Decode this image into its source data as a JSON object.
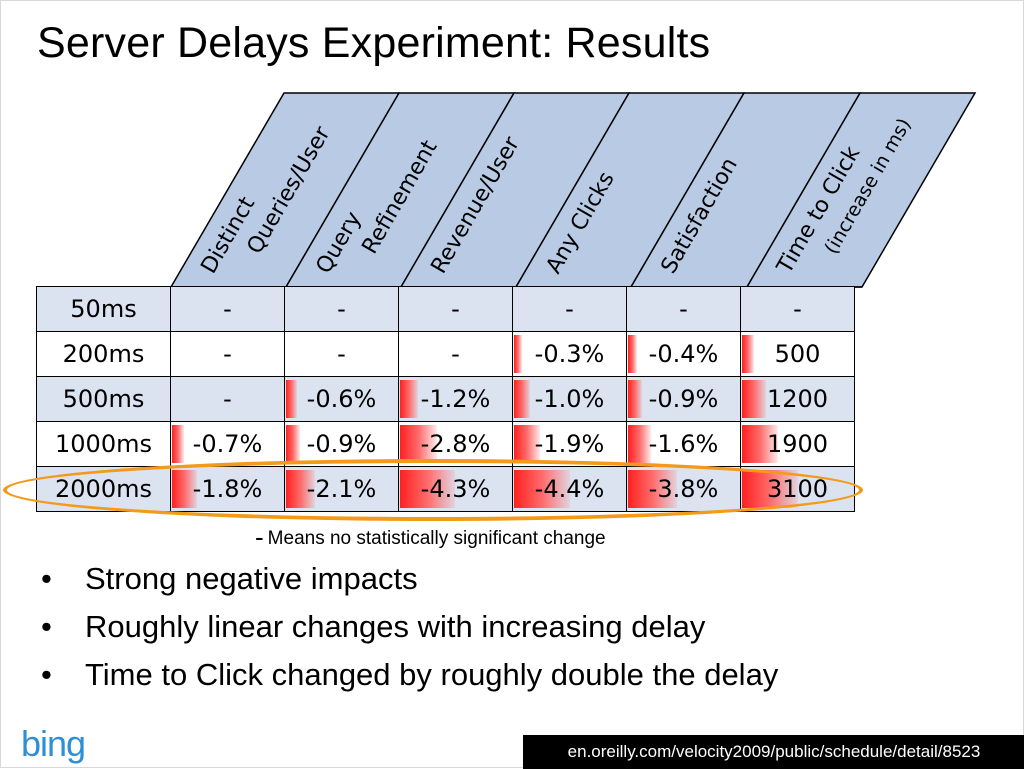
{
  "title": "Server Delays Experiment: Results",
  "columns": [
    {
      "line1": "Distinct",
      "line2": "Queries/User"
    },
    {
      "line1": "Query",
      "line2": "Refinement"
    },
    {
      "line1": "Revenue/User",
      "line2": ""
    },
    {
      "line1": "Any Clicks",
      "line2": ""
    },
    {
      "line1": "Satisfaction",
      "line2": ""
    },
    {
      "line1": "Time to Click",
      "line2": "(increase in ms)"
    }
  ],
  "rows": [
    {
      "label": "50ms",
      "cells": [
        "-",
        "-",
        "-",
        "-",
        "-",
        "-"
      ],
      "bars": [
        0,
        0,
        0,
        0,
        0,
        0
      ]
    },
    {
      "label": "200ms",
      "cells": [
        "-",
        "-",
        "-",
        "-0.3%",
        "-0.4%",
        "500"
      ],
      "bars": [
        0,
        0,
        0,
        0.07,
        0.09,
        0.16
      ]
    },
    {
      "label": "500ms",
      "cells": [
        "-",
        "-0.6%",
        "-1.2%",
        "-1.0%",
        "-0.9%",
        "1200"
      ],
      "bars": [
        0,
        0.14,
        0.27,
        0.23,
        0.2,
        0.39
      ]
    },
    {
      "label": "1000ms",
      "cells": [
        "-0.7%",
        "-0.9%",
        "-2.8%",
        "-1.9%",
        "-1.6%",
        "1900"
      ],
      "bars": [
        0.16,
        0.2,
        0.64,
        0.43,
        0.36,
        0.61
      ]
    },
    {
      "label": "2000ms",
      "cells": [
        "-1.8%",
        "-2.1%",
        "-4.3%",
        "-4.4%",
        "-3.8%",
        "3100"
      ],
      "bars": [
        0.41,
        0.48,
        0.98,
        1.0,
        0.86,
        1.0
      ]
    }
  ],
  "highlight_row": "2000ms",
  "highlight_color": "#f39a1a",
  "note": {
    "dash": "-",
    "text": "Means no statistically significant change"
  },
  "bullets": [
    "Strong negative impacts",
    "Roughly linear changes with increasing delay",
    "Time to Click changed by roughly double the delay"
  ],
  "logo": "bing",
  "source": "en.oreilly.com/velocity2009/public/schedule/detail/8523",
  "colors": {
    "header_fill": "#b9cbe4",
    "row_shade": "#dce3f0",
    "bar": "#ff2020",
    "logo": "#2e8fd4"
  }
}
